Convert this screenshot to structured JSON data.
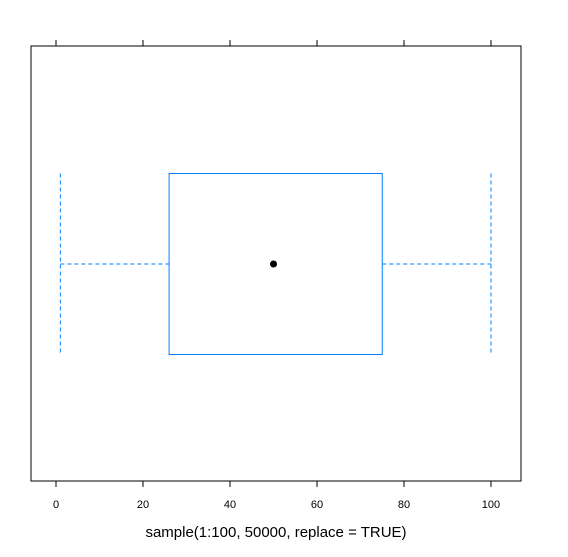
{
  "chart_data": {
    "type": "box",
    "xlabel": "sample(1:100, 50000, replace = TRUE)",
    "xlim": [
      -5.75,
      106.9
    ],
    "xticks": [
      0,
      20,
      40,
      60,
      80,
      100
    ],
    "stats": {
      "min": 1,
      "q1": 26,
      "median": 50,
      "q3": 75,
      "max": 100
    },
    "color": "#0080ff"
  }
}
